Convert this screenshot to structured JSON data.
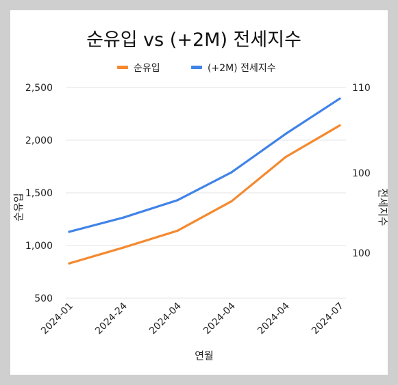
{
  "chart_data": {
    "type": "line",
    "title": "순유입 vs (+2M) 전세지수",
    "xlabel": "연월",
    "ylabel_left": "순유입",
    "ylabel_right": "전세지수",
    "categories": [
      "2024-01",
      "2024-24",
      "2024-04",
      "2024-04",
      "2024-04",
      "2024-07"
    ],
    "yticks_left": [
      "2,500",
      "2,000",
      "1,500",
      "1,000",
      "500"
    ],
    "ylim_left": [
      500,
      2500
    ],
    "yticks_right": [
      "110",
      "100",
      "100"
    ],
    "series": [
      {
        "name": "순유입",
        "axis": "left",
        "color": "#f4892f",
        "values": [
          830,
          980,
          1140,
          1420,
          1840,
          2140
        ]
      },
      {
        "name": "(+2M) 전세지수",
        "axis": "left",
        "color": "#4083e8",
        "values": [
          1130,
          1265,
          1430,
          1695,
          2060,
          2395
        ]
      }
    ],
    "legend_position": "top-center",
    "grid": true
  }
}
